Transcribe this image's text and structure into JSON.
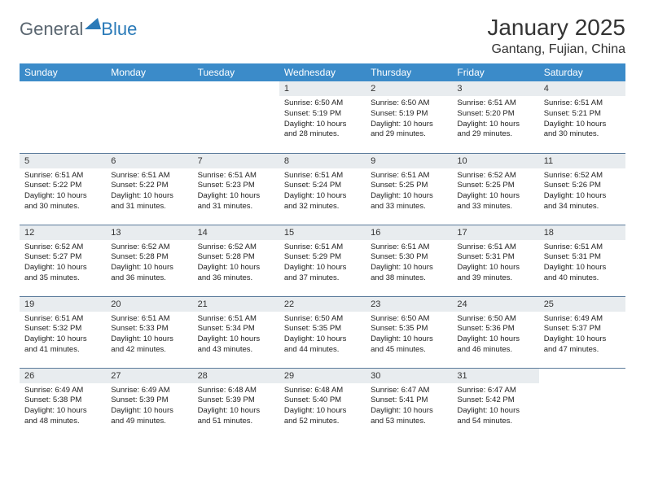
{
  "logo": {
    "text1": "General",
    "text2": "Blue"
  },
  "title": "January 2025",
  "location": "Gantang, Fujian, China",
  "colors": {
    "header_bg": "#3b8bc9",
    "header_text": "#ffffff",
    "daynum_bg": "#e8ecef",
    "border": "#5a7a9a",
    "logo_gray": "#5a6670",
    "logo_blue": "#2a7ab8",
    "page_bg": "#ffffff",
    "text": "#222222"
  },
  "daysOfWeek": [
    "Sunday",
    "Monday",
    "Tuesday",
    "Wednesday",
    "Thursday",
    "Friday",
    "Saturday"
  ],
  "weeks": [
    [
      null,
      null,
      null,
      {
        "n": "1",
        "sr": "6:50 AM",
        "ss": "5:19 PM",
        "dl": "10 hours and 28 minutes."
      },
      {
        "n": "2",
        "sr": "6:50 AM",
        "ss": "5:19 PM",
        "dl": "10 hours and 29 minutes."
      },
      {
        "n": "3",
        "sr": "6:51 AM",
        "ss": "5:20 PM",
        "dl": "10 hours and 29 minutes."
      },
      {
        "n": "4",
        "sr": "6:51 AM",
        "ss": "5:21 PM",
        "dl": "10 hours and 30 minutes."
      }
    ],
    [
      {
        "n": "5",
        "sr": "6:51 AM",
        "ss": "5:22 PM",
        "dl": "10 hours and 30 minutes."
      },
      {
        "n": "6",
        "sr": "6:51 AM",
        "ss": "5:22 PM",
        "dl": "10 hours and 31 minutes."
      },
      {
        "n": "7",
        "sr": "6:51 AM",
        "ss": "5:23 PM",
        "dl": "10 hours and 31 minutes."
      },
      {
        "n": "8",
        "sr": "6:51 AM",
        "ss": "5:24 PM",
        "dl": "10 hours and 32 minutes."
      },
      {
        "n": "9",
        "sr": "6:51 AM",
        "ss": "5:25 PM",
        "dl": "10 hours and 33 minutes."
      },
      {
        "n": "10",
        "sr": "6:52 AM",
        "ss": "5:25 PM",
        "dl": "10 hours and 33 minutes."
      },
      {
        "n": "11",
        "sr": "6:52 AM",
        "ss": "5:26 PM",
        "dl": "10 hours and 34 minutes."
      }
    ],
    [
      {
        "n": "12",
        "sr": "6:52 AM",
        "ss": "5:27 PM",
        "dl": "10 hours and 35 minutes."
      },
      {
        "n": "13",
        "sr": "6:52 AM",
        "ss": "5:28 PM",
        "dl": "10 hours and 36 minutes."
      },
      {
        "n": "14",
        "sr": "6:52 AM",
        "ss": "5:28 PM",
        "dl": "10 hours and 36 minutes."
      },
      {
        "n": "15",
        "sr": "6:51 AM",
        "ss": "5:29 PM",
        "dl": "10 hours and 37 minutes."
      },
      {
        "n": "16",
        "sr": "6:51 AM",
        "ss": "5:30 PM",
        "dl": "10 hours and 38 minutes."
      },
      {
        "n": "17",
        "sr": "6:51 AM",
        "ss": "5:31 PM",
        "dl": "10 hours and 39 minutes."
      },
      {
        "n": "18",
        "sr": "6:51 AM",
        "ss": "5:31 PM",
        "dl": "10 hours and 40 minutes."
      }
    ],
    [
      {
        "n": "19",
        "sr": "6:51 AM",
        "ss": "5:32 PM",
        "dl": "10 hours and 41 minutes."
      },
      {
        "n": "20",
        "sr": "6:51 AM",
        "ss": "5:33 PM",
        "dl": "10 hours and 42 minutes."
      },
      {
        "n": "21",
        "sr": "6:51 AM",
        "ss": "5:34 PM",
        "dl": "10 hours and 43 minutes."
      },
      {
        "n": "22",
        "sr": "6:50 AM",
        "ss": "5:35 PM",
        "dl": "10 hours and 44 minutes."
      },
      {
        "n": "23",
        "sr": "6:50 AM",
        "ss": "5:35 PM",
        "dl": "10 hours and 45 minutes."
      },
      {
        "n": "24",
        "sr": "6:50 AM",
        "ss": "5:36 PM",
        "dl": "10 hours and 46 minutes."
      },
      {
        "n": "25",
        "sr": "6:49 AM",
        "ss": "5:37 PM",
        "dl": "10 hours and 47 minutes."
      }
    ],
    [
      {
        "n": "26",
        "sr": "6:49 AM",
        "ss": "5:38 PM",
        "dl": "10 hours and 48 minutes."
      },
      {
        "n": "27",
        "sr": "6:49 AM",
        "ss": "5:39 PM",
        "dl": "10 hours and 49 minutes."
      },
      {
        "n": "28",
        "sr": "6:48 AM",
        "ss": "5:39 PM",
        "dl": "10 hours and 51 minutes."
      },
      {
        "n": "29",
        "sr": "6:48 AM",
        "ss": "5:40 PM",
        "dl": "10 hours and 52 minutes."
      },
      {
        "n": "30",
        "sr": "6:47 AM",
        "ss": "5:41 PM",
        "dl": "10 hours and 53 minutes."
      },
      {
        "n": "31",
        "sr": "6:47 AM",
        "ss": "5:42 PM",
        "dl": "10 hours and 54 minutes."
      },
      null
    ]
  ],
  "labels": {
    "sunrise": "Sunrise:",
    "sunset": "Sunset:",
    "daylight": "Daylight:"
  }
}
